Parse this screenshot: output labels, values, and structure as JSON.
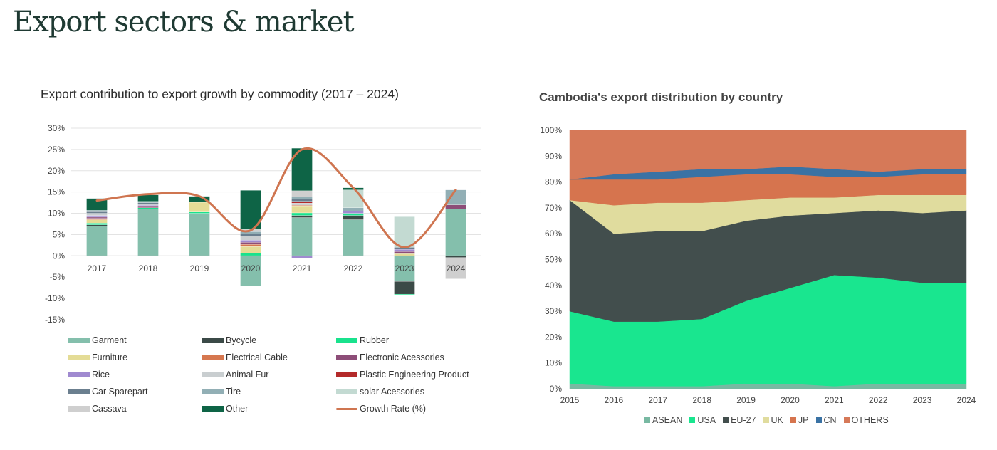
{
  "page": {
    "title": "Export sectors & market"
  },
  "chart_data": [
    {
      "type": "bar",
      "stacked": true,
      "title": "Export contribution to export growth by commodity (2017 – 2024)",
      "categories": [
        "2017",
        "2018",
        "2019",
        "2020",
        "2021",
        "2022",
        "2023",
        "2024"
      ],
      "ylim": [
        -15,
        30
      ],
      "yticks": [
        "30%",
        "25%",
        "20%",
        "15%",
        "10%",
        "5%",
        "0%",
        "-5%",
        "-10%",
        "-15%"
      ],
      "grid": true,
      "legend_position": "bottom",
      "series": [
        {
          "name": "Garment",
          "color": "#84bfac",
          "values": [
            7,
            11,
            10,
            -7,
            9,
            8.5,
            -6,
            11
          ]
        },
        {
          "name": "Bycycle",
          "color": "#3b4a47",
          "values": [
            0.3,
            0,
            0,
            0,
            0.5,
            1,
            -3,
            -0.4
          ]
        },
        {
          "name": "Rubber",
          "color": "#19e28d",
          "values": [
            0.4,
            0.3,
            0.3,
            0.7,
            0.6,
            0.5,
            -0.3,
            0
          ]
        },
        {
          "name": "Furniture",
          "color": "#e4dc96",
          "values": [
            0.8,
            0,
            2.3,
            1.5,
            1.5,
            0,
            0.5,
            0
          ]
        },
        {
          "name": "Electrical Cable",
          "color": "#d6774f",
          "values": [
            0.3,
            0,
            0,
            0.5,
            0.3,
            0,
            0,
            0
          ]
        },
        {
          "name": "Electronic Acessories",
          "color": "#8d4d78",
          "values": [
            0.3,
            0.3,
            0,
            0.5,
            0,
            0,
            0.5,
            1
          ]
        },
        {
          "name": "Rice",
          "color": "#a08ad0",
          "values": [
            0.4,
            0.3,
            0,
            0.5,
            -0.5,
            0.5,
            0.5,
            0
          ]
        },
        {
          "name": "Animal Fur",
          "color": "#c9ced0",
          "values": [
            0.5,
            0.3,
            0,
            1,
            0.5,
            0,
            0,
            0
          ]
        },
        {
          "name": "Plastic Engineering Product",
          "color": "#b42a2a",
          "values": [
            0,
            0,
            0,
            0,
            0.4,
            0,
            0,
            0
          ]
        },
        {
          "name": "Car Sparepart",
          "color": "#6b7f8f",
          "values": [
            0.4,
            0.3,
            0,
            0.5,
            0.5,
            0,
            0.5,
            0
          ]
        },
        {
          "name": "Tire",
          "color": "#92afb5",
          "values": [
            0.3,
            0.3,
            0,
            0.5,
            0.5,
            0.8,
            0,
            3.5
          ]
        },
        {
          "name": "solar Acessories",
          "color": "#c3dad2",
          "values": [
            0,
            0,
            0,
            0,
            0,
            4.2,
            7.2,
            0
          ]
        },
        {
          "name": "Cassava",
          "color": "#cfcfcf",
          "values": [
            0,
            0,
            0,
            0.5,
            1.5,
            0,
            0,
            -5
          ]
        },
        {
          "name": "Other",
          "color": "#0e6446",
          "values": [
            2.8,
            1.5,
            1.4,
            9.2,
            10,
            0.5,
            0,
            0
          ]
        }
      ],
      "line_series": {
        "name": "Growth Rate (%)",
        "color": "#cf7550",
        "values": [
          13,
          14.5,
          14,
          6,
          25,
          16,
          2,
          15.5
        ]
      }
    },
    {
      "type": "area",
      "stacked": true,
      "title": "Cambodia's export distribution by country",
      "x": [
        "2015",
        "2016",
        "2017",
        "2018",
        "2019",
        "2020",
        "2021",
        "2022",
        "2023",
        "2024"
      ],
      "ylim": [
        0,
        100
      ],
      "yticks": [
        "100%",
        "90%",
        "80%",
        "70%",
        "60%",
        "50%",
        "40%",
        "30%",
        "20%",
        "10%",
        "0%"
      ],
      "legend_position": "bottom",
      "series": [
        {
          "name": "ASEAN",
          "color": "#78b9a2",
          "values": [
            2,
            1,
            1,
            1,
            2,
            2,
            1,
            2,
            2,
            2
          ]
        },
        {
          "name": "USA",
          "color": "#19e68f",
          "values": [
            28,
            25,
            25,
            26,
            32,
            37,
            43,
            41,
            39,
            39
          ]
        },
        {
          "name": "EU-27",
          "color": "#424e4d",
          "values": [
            43,
            34,
            35,
            34,
            31,
            28,
            24,
            26,
            27,
            28
          ]
        },
        {
          "name": "UK",
          "color": "#e0dc9e",
          "values": [
            0,
            11,
            11,
            11,
            8,
            7,
            6,
            6,
            7,
            6
          ]
        },
        {
          "name": "JP",
          "color": "#d6744e",
          "values": [
            8,
            10,
            9,
            10,
            10,
            9,
            8,
            7,
            8,
            8
          ]
        },
        {
          "name": "CN",
          "color": "#3a72a4",
          "values": [
            0,
            2,
            3,
            3,
            2,
            3,
            3,
            2,
            2,
            2
          ]
        },
        {
          "name": "OTHERS",
          "color": "#d67958",
          "values": [
            19,
            17,
            16,
            15,
            15,
            14,
            15,
            16,
            15,
            15
          ]
        }
      ]
    }
  ]
}
